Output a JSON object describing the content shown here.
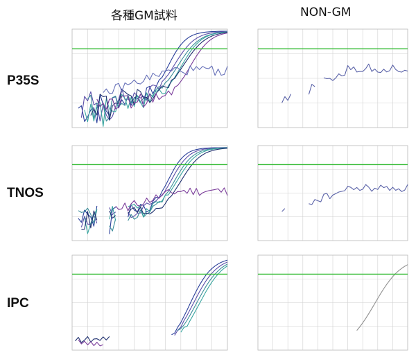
{
  "columns": [
    "各種GM試料",
    "NON-GM"
  ],
  "rows": [
    "P35S",
    "TNOS",
    "IPC"
  ],
  "colors": {
    "threshold": "#33bb33",
    "grid": "#d0d0d0",
    "series": [
      "#2a3f9a",
      "#5a4da8",
      "#3d8e9a",
      "#3aa6a0",
      "#1e2f6e",
      "#7a3c9a",
      "#6670b8"
    ],
    "nonGM": "#5a62a8",
    "ipcNonGM": "#909090"
  },
  "chart_data": [
    {
      "id": "p35s-gm",
      "type": "line",
      "row": "P35S",
      "column": "各種GM試料",
      "xlim": [
        0,
        50
      ],
      "ylim": [
        0,
        1
      ],
      "threshold": 0.8,
      "series": [
        {
          "curve": "sig",
          "mid": 31,
          "k": 0.35,
          "base": 0.28,
          "noise": 0.1,
          "from": 2
        },
        {
          "curve": "sig",
          "mid": 33,
          "k": 0.3,
          "base": 0.3,
          "noise": 0.1,
          "from": 3
        },
        {
          "curve": "sig",
          "mid": 34,
          "k": 0.28,
          "base": 0.27,
          "noise": 0.08,
          "from": 5
        },
        {
          "curve": "sig",
          "mid": 35,
          "k": 0.3,
          "base": 0.25,
          "noise": 0.1,
          "from": 4
        },
        {
          "curve": "sig",
          "mid": 36,
          "k": 0.28,
          "base": 0.3,
          "noise": 0.09,
          "from": 6
        },
        {
          "curve": "sig",
          "mid": 38,
          "k": 0.3,
          "base": 0.26,
          "noise": 0.08,
          "from": 8
        },
        {
          "curve": "flat",
          "base": 0.35,
          "top": 0.58,
          "noise": 0.05,
          "from": 10
        }
      ]
    },
    {
      "id": "p35s-nongm",
      "type": "line",
      "row": "P35S",
      "column": "NON-GM",
      "xlim": [
        0,
        50
      ],
      "ylim": [
        0,
        1
      ],
      "threshold": 0.8,
      "series": [
        {
          "curve": "flat",
          "base": 0.25,
          "top": 0.6,
          "noise": 0.05,
          "from": 8,
          "gaps": [
            [
              12,
              16
            ],
            [
              20,
              21
            ]
          ]
        }
      ]
    },
    {
      "id": "tnos-gm",
      "type": "line",
      "row": "TNOS",
      "column": "各種GM試料",
      "xlim": [
        0,
        50
      ],
      "ylim": [
        0,
        1
      ],
      "threshold": 0.8,
      "series": [
        {
          "curve": "sig",
          "mid": 31,
          "k": 0.38,
          "base": 0.3,
          "noise": 0.09,
          "from": 2,
          "gaps": [
            [
              9,
              11
            ],
            [
              15,
              17
            ]
          ]
        },
        {
          "curve": "sig",
          "mid": 32,
          "k": 0.35,
          "base": 0.3,
          "noise": 0.08,
          "from": 3,
          "gaps": [
            [
              9,
              11
            ],
            [
              15,
              17
            ]
          ]
        },
        {
          "curve": "sig",
          "mid": 33,
          "k": 0.33,
          "base": 0.28,
          "noise": 0.08,
          "from": 2,
          "gaps": [
            [
              9,
              11
            ],
            [
              15,
              17
            ]
          ]
        },
        {
          "curve": "sig",
          "mid": 34,
          "k": 0.32,
          "base": 0.3,
          "noise": 0.09,
          "from": 4,
          "gaps": [
            [
              9,
              11
            ],
            [
              15,
              17
            ]
          ]
        },
        {
          "curve": "sig",
          "mid": 35,
          "k": 0.3,
          "base": 0.27,
          "noise": 0.08,
          "from": 3,
          "gaps": [
            [
              9,
              11
            ],
            [
              15,
              17
            ]
          ]
        },
        {
          "curve": "flat",
          "base": 0.32,
          "top": 0.52,
          "noise": 0.05,
          "from": 14
        }
      ]
    },
    {
      "id": "tnos-nongm",
      "type": "line",
      "row": "TNOS",
      "column": "NON-GM",
      "xlim": [
        0,
        50
      ],
      "ylim": [
        0,
        1
      ],
      "threshold": 0.8,
      "series": [
        {
          "curve": "flat",
          "base": 0.3,
          "top": 0.55,
          "noise": 0.04,
          "from": 8,
          "gaps": [
            [
              10,
              12
            ],
            [
              14,
              16
            ]
          ]
        }
      ]
    },
    {
      "id": "ipc-gm",
      "type": "line",
      "row": "IPC",
      "column": "各種GM試料",
      "xlim": [
        0,
        50
      ],
      "ylim": [
        0,
        1
      ],
      "threshold": 0.8,
      "series": [
        {
          "curve": "sig",
          "mid": 38,
          "k": 0.28,
          "base": 0.0,
          "noise": 0.08,
          "from": 32
        },
        {
          "curve": "sig",
          "mid": 39,
          "k": 0.26,
          "base": 0.0,
          "noise": 0.07,
          "from": 33
        },
        {
          "curve": "sig",
          "mid": 40,
          "k": 0.25,
          "base": 0.0,
          "noise": 0.07,
          "from": 34
        },
        {
          "curve": "sig",
          "mid": 41,
          "k": 0.25,
          "base": 0.0,
          "noise": 0.08,
          "from": 35
        },
        {
          "curve": "noise",
          "base": 0.06,
          "noise": 0.08,
          "from": 1,
          "to": 12
        },
        {
          "curve": "noise",
          "base": 0.04,
          "noise": 0.06,
          "from": 2,
          "to": 10
        }
      ]
    },
    {
      "id": "ipc-nongm",
      "type": "line",
      "row": "IPC",
      "column": "NON-GM",
      "xlim": [
        0,
        50
      ],
      "ylim": [
        0,
        1
      ],
      "threshold": 0.8,
      "series": [
        {
          "curve": "sig",
          "mid": 39,
          "k": 0.22,
          "base": 0.0,
          "noise": 0.0,
          "from": 33,
          "gray": true
        }
      ]
    }
  ]
}
